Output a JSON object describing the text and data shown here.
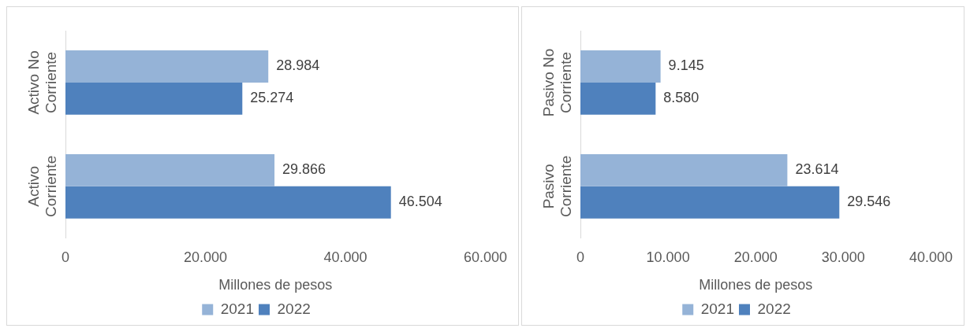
{
  "chart_data": [
    {
      "type": "bar",
      "orientation": "horizontal",
      "categories": [
        "Activo No Corriente",
        "Activo Corriente"
      ],
      "series": [
        {
          "name": "2021",
          "color": "#95b3d7",
          "values": [
            28984,
            29866
          ],
          "value_labels": [
            "28.984",
            "29.866"
          ]
        },
        {
          "name": "2022",
          "color": "#4f81bd",
          "values": [
            25274,
            46504
          ],
          "value_labels": [
            "25.274",
            "46.504"
          ]
        }
      ],
      "xlim": [
        0,
        60000
      ],
      "xticks": [
        0,
        {
          "value": 20000,
          "label": "20.000"
        },
        {
          "value": 40000,
          "label": "40.000"
        },
        {
          "value": 60000,
          "label": "60.000"
        }
      ],
      "xlabel": "Millones de pesos",
      "grid": false,
      "legend": "bottom"
    },
    {
      "type": "bar",
      "orientation": "horizontal",
      "categories": [
        "Pasivo No Corriente",
        "Pasivo Corriente"
      ],
      "series": [
        {
          "name": "2021",
          "color": "#95b3d7",
          "values": [
            9145,
            23614
          ],
          "value_labels": [
            "9.145",
            "23.614"
          ]
        },
        {
          "name": "2022",
          "color": "#4f81bd",
          "values": [
            8580,
            29546
          ],
          "value_labels": [
            "8.580",
            "29.546"
          ]
        }
      ],
      "xlim": [
        0,
        40000
      ],
      "xticks": [
        0,
        {
          "value": 10000,
          "label": "10.000"
        },
        {
          "value": 20000,
          "label": "20.000"
        },
        {
          "value": 30000,
          "label": "30.000"
        },
        {
          "value": 40000,
          "label": "40.000"
        }
      ],
      "xlabel": "Millones de pesos",
      "grid": false,
      "legend": "bottom"
    }
  ]
}
